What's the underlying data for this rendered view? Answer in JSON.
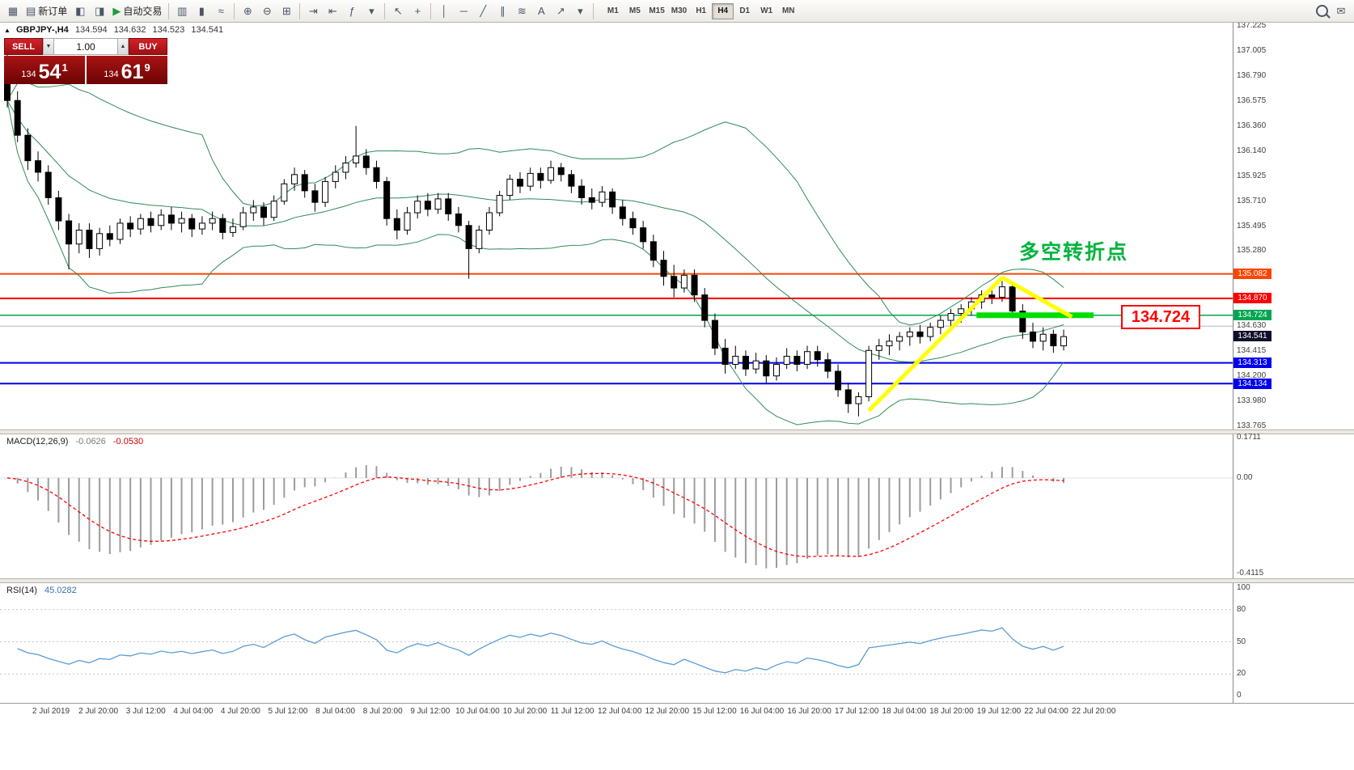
{
  "toolbar": {
    "buttons_left": [
      {
        "name": "new-chart",
        "glyph": "▦"
      },
      {
        "name": "new-order",
        "glyph": "▤",
        "label": "新订单"
      },
      {
        "name": "chart-profiles",
        "glyph": "◧"
      },
      {
        "name": "market-watch",
        "glyph": "◨"
      },
      {
        "name": "auto-trading",
        "glyph": "▶",
        "label": "自动交易",
        "glyph_color": "#1f9d3a"
      },
      {
        "sep": true
      },
      {
        "name": "bar-chart-mode",
        "glyph": "▥"
      },
      {
        "name": "candlestick-mode",
        "glyph": "▮"
      },
      {
        "name": "line-chart-mode",
        "glyph": "≈"
      },
      {
        "sep": true
      },
      {
        "name": "zoom-in",
        "glyph": "⊕"
      },
      {
        "name": "zoom-out",
        "glyph": "⊖"
      },
      {
        "name": "tile-windows",
        "glyph": "⊞"
      },
      {
        "sep": true
      },
      {
        "name": "auto-scroll",
        "glyph": "⇥"
      },
      {
        "name": "chart-shift",
        "glyph": "⇤"
      },
      {
        "name": "indicators",
        "glyph": "ƒ"
      },
      {
        "name": "indicators-dropdown",
        "glyph": "▾"
      },
      {
        "sep": true
      },
      {
        "name": "cursor",
        "glyph": "↖"
      },
      {
        "name": "crosshair",
        "glyph": "+"
      },
      {
        "sep": true
      },
      {
        "name": "vertical-line",
        "glyph": "│"
      },
      {
        "name": "horizontal-line",
        "glyph": "─"
      },
      {
        "name": "trendline",
        "glyph": "╱"
      },
      {
        "name": "equidistant-channel",
        "glyph": "∥"
      },
      {
        "name": "fibonacci-retracement",
        "glyph": "≋"
      },
      {
        "name": "text-label",
        "glyph": "A"
      },
      {
        "name": "arrow-objects",
        "glyph": "↗"
      },
      {
        "name": "objects-dropdown",
        "glyph": "▾"
      },
      {
        "sep": true
      }
    ],
    "timeframes": [
      "M1",
      "M5",
      "M15",
      "M30",
      "H1",
      "H4",
      "D1",
      "W1",
      "MN"
    ],
    "active_timeframe": "H4",
    "buttons_right": [
      {
        "name": "search",
        "css": "magnifier"
      },
      {
        "name": "mail",
        "glyph": "✉"
      }
    ]
  },
  "symbol_line": {
    "arrow": "▲",
    "symbol": "GBPJPY-,H4",
    "open": "134.594",
    "high": "134.632",
    "low": "134.523",
    "close": "134.541"
  },
  "oct": {
    "sell_label": "SELL",
    "buy_label": "BUY",
    "volume": "1.00",
    "spin_up_icon": "▲",
    "spin_down_icon": "▼",
    "sell_price": {
      "prefix": "134",
      "big": "54",
      "sup": "1"
    },
    "buy_price": {
      "prefix": "134",
      "big": "61",
      "sup": "9"
    },
    "button_red": "#d2232a",
    "panel_red": "#a81313"
  },
  "annotation": {
    "text": "多空转折点",
    "color": "#00b33c"
  },
  "level_label": {
    "text": "134.724",
    "color": "#ff0000"
  },
  "chart_data": {
    "type": "candlestick",
    "symbol": "GBPJPY-",
    "timeframe": "H4",
    "y_range": [
      133.765,
      137.225
    ],
    "y_axis_ticks": [
      "137.225",
      "137.005",
      "136.790",
      "136.575",
      "136.360",
      "136.140",
      "135.925",
      "135.710",
      "135.495",
      "135.280",
      "135.060",
      "134.845",
      "134.630",
      "134.415",
      "134.200",
      "133.980",
      "133.765"
    ],
    "x_labels": [
      "2 Jul 2019",
      "2 Jul 20:00",
      "3 Jul 12:00",
      "4 Jul 04:00",
      "4 Jul 20:00",
      "5 Jul 12:00",
      "8 Jul 04:00",
      "8 Jul 20:00",
      "9 Jul 12:00",
      "10 Jul 04:00",
      "10 Jul 20:00",
      "11 Jul 12:00",
      "12 Jul 04:00",
      "12 Jul 20:00",
      "15 Jul 12:00",
      "16 Jul 04:00",
      "16 Jul 20:00",
      "17 Jul 12:00",
      "18 Jul 04:00",
      "18 Jul 20:00",
      "19 Jul 12:00",
      "22 Jul 04:00",
      "22 Jul 20:00"
    ],
    "ohlc": [
      [
        136.92,
        137.05,
        136.52,
        136.58
      ],
      [
        136.58,
        136.66,
        136.22,
        136.28
      ],
      [
        136.28,
        136.34,
        135.98,
        136.06
      ],
      [
        136.06,
        136.14,
        135.88,
        135.96
      ],
      [
        135.96,
        136.02,
        135.68,
        135.74
      ],
      [
        135.74,
        135.8,
        135.46,
        135.54
      ],
      [
        135.54,
        135.6,
        135.12,
        135.34
      ],
      [
        135.34,
        135.52,
        135.26,
        135.46
      ],
      [
        135.46,
        135.52,
        135.22,
        135.3
      ],
      [
        135.3,
        135.48,
        135.24,
        135.43
      ],
      [
        135.43,
        135.5,
        135.32,
        135.38
      ],
      [
        135.38,
        135.56,
        135.34,
        135.52
      ],
      [
        135.52,
        135.58,
        135.4,
        135.47
      ],
      [
        135.47,
        135.6,
        135.42,
        135.56
      ],
      [
        135.56,
        135.62,
        135.44,
        135.5
      ],
      [
        135.5,
        135.64,
        135.46,
        135.59
      ],
      [
        135.59,
        135.66,
        135.46,
        135.52
      ],
      [
        135.52,
        135.62,
        135.44,
        135.56
      ],
      [
        135.56,
        135.6,
        135.4,
        135.47
      ],
      [
        135.47,
        135.58,
        135.42,
        135.52
      ],
      [
        135.52,
        135.62,
        135.46,
        135.56
      ],
      [
        135.56,
        135.6,
        135.38,
        135.44
      ],
      [
        135.44,
        135.56,
        135.4,
        135.49
      ],
      [
        135.49,
        135.66,
        135.46,
        135.61
      ],
      [
        135.61,
        135.72,
        135.54,
        135.66
      ],
      [
        135.66,
        135.7,
        135.5,
        135.57
      ],
      [
        135.57,
        135.76,
        135.54,
        135.71
      ],
      [
        135.71,
        135.9,
        135.68,
        135.86
      ],
      [
        135.86,
        136.0,
        135.8,
        135.94
      ],
      [
        135.94,
        135.98,
        135.74,
        135.8
      ],
      [
        135.8,
        135.86,
        135.62,
        135.7
      ],
      [
        135.7,
        135.92,
        135.66,
        135.88
      ],
      [
        135.88,
        136.02,
        135.82,
        135.96
      ],
      [
        135.96,
        136.1,
        135.9,
        136.04
      ],
      [
        136.04,
        136.36,
        136.0,
        136.1
      ],
      [
        136.1,
        136.16,
        135.94,
        136.0
      ],
      [
        136.0,
        136.06,
        135.82,
        135.88
      ],
      [
        135.88,
        135.92,
        135.5,
        135.56
      ],
      [
        135.56,
        135.64,
        135.38,
        135.46
      ],
      [
        135.46,
        135.66,
        135.42,
        135.61
      ],
      [
        135.61,
        135.76,
        135.56,
        135.71
      ],
      [
        135.71,
        135.78,
        135.58,
        135.64
      ],
      [
        135.64,
        135.78,
        135.6,
        135.73
      ],
      [
        135.73,
        135.78,
        135.54,
        135.6
      ],
      [
        135.6,
        135.66,
        135.44,
        135.5
      ],
      [
        135.5,
        135.54,
        135.04,
        135.3
      ],
      [
        135.3,
        135.5,
        135.26,
        135.46
      ],
      [
        135.46,
        135.66,
        135.42,
        135.61
      ],
      [
        135.61,
        135.8,
        135.58,
        135.76
      ],
      [
        135.76,
        135.94,
        135.72,
        135.9
      ],
      [
        135.9,
        135.96,
        135.78,
        135.84
      ],
      [
        135.84,
        136.0,
        135.8,
        135.95
      ],
      [
        135.95,
        136.0,
        135.82,
        135.89
      ],
      [
        135.89,
        136.06,
        135.86,
        136.0
      ],
      [
        136.0,
        136.04,
        135.88,
        135.94
      ],
      [
        135.94,
        135.98,
        135.78,
        135.84
      ],
      [
        135.84,
        135.9,
        135.68,
        135.74
      ],
      [
        135.74,
        135.82,
        135.64,
        135.7
      ],
      [
        135.7,
        135.84,
        135.66,
        135.79
      ],
      [
        135.79,
        135.82,
        135.6,
        135.66
      ],
      [
        135.66,
        135.72,
        135.5,
        135.56
      ],
      [
        135.56,
        135.62,
        135.42,
        135.48
      ],
      [
        135.48,
        135.54,
        135.3,
        135.36
      ],
      [
        135.36,
        135.42,
        135.14,
        135.2
      ],
      [
        135.2,
        135.28,
        134.98,
        135.06
      ],
      [
        135.06,
        135.16,
        134.88,
        134.96
      ],
      [
        134.96,
        135.12,
        134.92,
        135.07
      ],
      [
        135.07,
        135.12,
        134.84,
        134.9
      ],
      [
        134.9,
        134.96,
        134.62,
        134.68
      ],
      [
        134.68,
        134.74,
        134.38,
        134.44
      ],
      [
        134.44,
        134.52,
        134.22,
        134.3
      ],
      [
        134.3,
        134.46,
        134.26,
        134.37
      ],
      [
        134.37,
        134.42,
        134.2,
        134.26
      ],
      [
        134.26,
        134.4,
        134.22,
        134.33
      ],
      [
        134.33,
        134.38,
        134.14,
        134.2
      ],
      [
        134.2,
        134.36,
        134.16,
        134.3
      ],
      [
        134.3,
        134.44,
        134.26,
        134.37
      ],
      [
        134.37,
        134.42,
        134.24,
        134.3
      ],
      [
        134.3,
        134.46,
        134.26,
        134.41
      ],
      [
        134.41,
        134.46,
        134.28,
        134.34
      ],
      [
        134.34,
        134.4,
        134.18,
        134.24
      ],
      [
        134.24,
        134.3,
        134.02,
        134.08
      ],
      [
        134.08,
        134.14,
        133.88,
        133.96
      ],
      [
        133.96,
        134.06,
        133.85,
        134.02
      ],
      [
        134.02,
        134.46,
        133.98,
        134.42
      ],
      [
        134.42,
        134.52,
        134.34,
        134.46
      ],
      [
        134.46,
        134.56,
        134.38,
        134.5
      ],
      [
        134.5,
        134.58,
        134.42,
        134.54
      ],
      [
        134.54,
        134.62,
        134.46,
        134.58
      ],
      [
        134.58,
        134.64,
        134.48,
        134.54
      ],
      [
        134.54,
        134.66,
        134.5,
        134.62
      ],
      [
        134.62,
        134.72,
        134.56,
        134.68
      ],
      [
        134.68,
        134.78,
        134.62,
        134.74
      ],
      [
        134.74,
        134.82,
        134.66,
        134.78
      ],
      [
        134.78,
        134.88,
        134.72,
        134.84
      ],
      [
        134.84,
        134.94,
        134.78,
        134.9
      ],
      [
        134.9,
        134.98,
        134.82,
        134.88
      ],
      [
        134.88,
        135.02,
        134.84,
        134.97
      ],
      [
        134.97,
        135.0,
        134.7,
        134.76
      ],
      [
        134.76,
        134.82,
        134.52,
        134.58
      ],
      [
        134.58,
        134.66,
        134.44,
        134.5
      ],
      [
        134.5,
        134.62,
        134.42,
        134.56
      ],
      [
        134.56,
        134.6,
        134.4,
        134.46
      ],
      [
        134.46,
        134.6,
        134.42,
        134.54
      ]
    ],
    "bollinger": {
      "period": 20,
      "deviation": 2,
      "color": "#2e8b57"
    },
    "horizontal_lines": [
      {
        "price": 135.082,
        "color": "#ff4500",
        "width": 2,
        "label": "135.082"
      },
      {
        "price": 134.87,
        "color": "#ff0000",
        "width": 2,
        "label": "134.870"
      },
      {
        "price": 134.724,
        "color": "#00a651",
        "width": 1.5,
        "label": "134.724"
      },
      {
        "price": 134.63,
        "color": "#b8b8b8",
        "width": 1
      },
      {
        "price": 134.313,
        "color": "#0000ee",
        "width": 2,
        "label": "134.313"
      },
      {
        "price": 134.134,
        "color": "#0000ee",
        "width": 2,
        "label": "134.134"
      }
    ],
    "current_price": {
      "value": "134.541",
      "color": "#10102a"
    },
    "highlight_segment": {
      "price": 134.724,
      "from_candle": 94.5,
      "to_x": 1352,
      "color": "#00dd00",
      "width": 7
    },
    "trend_lines": [
      {
        "color": "#ffff00",
        "width": 5,
        "from": [
          84,
          133.9
        ],
        "to": [
          97,
          135.05
        ]
      },
      {
        "color": "#ffff00",
        "width": 5,
        "from": [
          97,
          135.05
        ],
        "to": [
          103.8,
          134.71
        ]
      }
    ],
    "macd": {
      "title": "MACD(12,26,9)",
      "value": "-0.0626",
      "signal": "-0.0530",
      "axis": [
        "0.1711",
        "0.00",
        "-0.4115"
      ],
      "histogram_color": "#9c9c9c",
      "signal_color": "#ff0000"
    },
    "rsi": {
      "title": "RSI(14)",
      "value": "45.0282",
      "axis": [
        "100",
        "80",
        "50",
        "20",
        "0"
      ],
      "levels": [
        80,
        50,
        20
      ],
      "color": "#5b9bd5"
    }
  }
}
